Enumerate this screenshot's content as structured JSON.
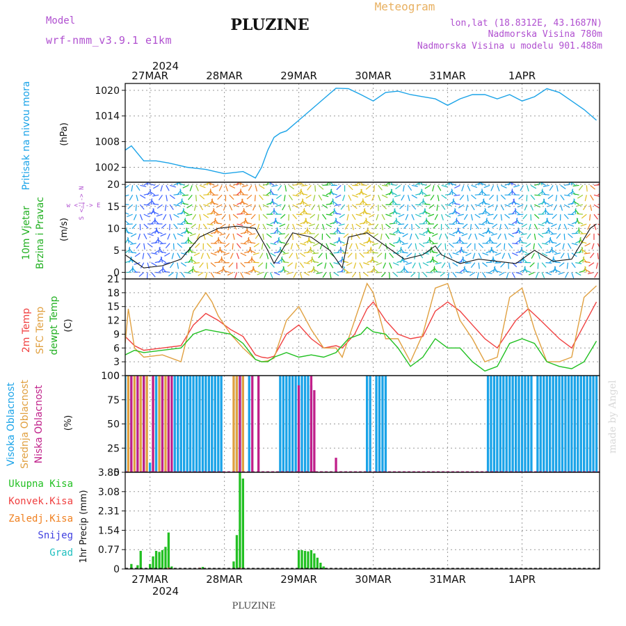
{
  "header": {
    "station": "PLUZINE",
    "product": "Meteogram",
    "model_label": "Model",
    "model_name": "wrf-nmm_v3.9.1 e1km",
    "lonlat": "lon,lat (18.8312E, 43.1687N)",
    "elevation": "Nadmorska Visina 780m",
    "model_elevation": "Nadmorska Visina u modelu 901.488m",
    "footer_station": "PLUZINE",
    "credit": "made by Angel"
  },
  "colors": {
    "pressure": "#1aa3e8",
    "temp2m": "#f04040",
    "sfc": "#e0a040",
    "dewpt": "#20c020",
    "cloud_high": "#1aa3e8",
    "cloud_mid": "#e0a040",
    "cloud_low": "#c0208a",
    "precip_total": "#22c022",
    "precip_conv": "#f04040",
    "precip_frozen": "#f08020",
    "snow": "#4040e0",
    "grad": "#20c0c0",
    "title_purple": "#b050d0",
    "title_orange": "#e8b060"
  },
  "chart_data": {
    "type": "meteogram",
    "year": "2024",
    "day_labels": [
      "27MAR",
      "28MAR",
      "29MAR",
      "30MAR",
      "31MAR",
      "1APR"
    ],
    "hours": 153,
    "panels": [
      {
        "id": "pressure",
        "type": "line",
        "ylabel": "Pritisak na nivou mora",
        "unit": "(hPa)",
        "yticks": [
          1002,
          1008,
          1014,
          1020
        ],
        "ylim": [
          998.5,
          1021.6
        ],
        "series": [
          {
            "x": [
              0,
              2,
              6,
              10,
              14,
              20,
              26,
              32,
              38,
              42,
              44,
              46,
              48,
              50,
              52,
              56,
              60,
              64,
              68,
              72,
              76,
              80,
              84,
              88,
              92,
              96,
              100,
              104,
              108,
              112,
              116,
              120,
              124,
              128,
              132,
              136,
              140,
              144,
              148,
              152
            ],
            "y": [
              1006,
              1007,
              1003.5,
              1003.5,
              1003,
              1002,
              1001.5,
              1000.5,
              1001,
              999.5,
              1002,
              1006,
              1009,
              1010,
              1010.5,
              1013,
              1015.5,
              1018,
              1020.5,
              1020.4,
              1019,
              1017.5,
              1019.5,
              1019.8,
              1019,
              1018.5,
              1018,
              1016.5,
              1018,
              1019,
              1019,
              1018,
              1019,
              1017.5,
              1018.5,
              1020.4,
              1019.5,
              1017.5,
              1015.5,
              1013
            ]
          }
        ]
      },
      {
        "id": "wind",
        "type": "wind-barbs",
        "ylabel": "10m Vjetar Brzina i Pravac",
        "unit": "(m/s)",
        "compass": [
          "w",
          "<-",
          "|",
          "->",
          "E",
          "N",
          "S"
        ],
        "yticks": [
          0,
          5,
          10,
          15,
          20
        ],
        "ylim": [
          -1.5,
          20.5
        ],
        "speed": {
          "x": [
            0,
            6,
            12,
            18,
            24,
            30,
            36,
            42,
            46,
            48,
            54,
            60,
            66,
            70,
            72,
            78,
            84,
            90,
            96,
            100,
            102,
            108,
            114,
            120,
            126,
            132,
            138,
            144,
            150,
            152
          ],
          "y": [
            4,
            1,
            1.5,
            3,
            8,
            10,
            10.5,
            10,
            5,
            2,
            9,
            8,
            5,
            1,
            8,
            9,
            6,
            3,
            4,
            6,
            4,
            2,
            3,
            2.5,
            2,
            5,
            2.5,
            3,
            10,
            11
          ]
        }
      },
      {
        "id": "temperature",
        "type": "line",
        "ylabel": [
          "2m Temp",
          "SFC Temp",
          "dewpt Temp"
        ],
        "unit": "(C)",
        "yticks": [
          0,
          3,
          6,
          9,
          12,
          15,
          18,
          21
        ],
        "ylim": [
          0,
          21
        ],
        "series": [
          {
            "name": "2m Temp",
            "key": "temp2m",
            "x": [
              0,
              3,
              6,
              12,
              18,
              22,
              26,
              30,
              34,
              38,
              42,
              44,
              46,
              48,
              52,
              56,
              60,
              64,
              68,
              70,
              74,
              78,
              80,
              84,
              88,
              92,
              96,
              100,
              104,
              108,
              112,
              116,
              120,
              126,
              130,
              134,
              140,
              144,
              148,
              152
            ],
            "y": [
              8.5,
              6.5,
              5.5,
              6,
              6.5,
              11,
              13.5,
              12,
              10,
              8.5,
              4.5,
              4,
              3.8,
              4.2,
              9,
              11,
              8,
              6,
              6.5,
              6,
              9,
              14.5,
              16,
              12,
              9,
              8,
              8.5,
              14,
              16,
              14,
              11,
              8,
              6,
              12,
              14.5,
              12,
              8,
              6,
              11,
              16
            ]
          },
          {
            "name": "SFC Temp",
            "key": "sfc",
            "x": [
              0,
              1,
              3,
              6,
              12,
              18,
              22,
              26,
              28,
              30,
              34,
              38,
              42,
              44,
              46,
              48,
              52,
              56,
              60,
              64,
              68,
              70,
              74,
              78,
              80,
              84,
              88,
              92,
              96,
              100,
              104,
              108,
              112,
              116,
              120,
              124,
              128,
              132,
              136,
              140,
              144,
              148,
              152
            ],
            "y": [
              7,
              14.5,
              6,
              4,
              4.5,
              3,
              14,
              18,
              16,
              13,
              9,
              6,
              3.5,
              3,
              3.2,
              3.8,
              12,
              15,
              10,
              6,
              6,
              4,
              12,
              20,
              18,
              8,
              8,
              3,
              9,
              19,
              20,
              12,
              8,
              3,
              4,
              17,
              19,
              10,
              3,
              3,
              4,
              17,
              19.5
            ]
          },
          {
            "name": "dewpt Temp",
            "key": "dewpt",
            "x": [
              0,
              3,
              6,
              12,
              18,
              22,
              26,
              30,
              34,
              38,
              42,
              44,
              46,
              48,
              52,
              56,
              60,
              64,
              68,
              72,
              76,
              78,
              80,
              84,
              88,
              92,
              96,
              100,
              104,
              108,
              112,
              116,
              120,
              124,
              128,
              132,
              136,
              140,
              144,
              148,
              152
            ],
            "y": [
              4.5,
              5.5,
              5,
              5.5,
              6,
              9,
              10,
              9.5,
              9,
              7,
              3.5,
              3,
              3,
              4,
              5,
              4,
              4.5,
              4,
              5,
              8,
              9,
              10.5,
              9.5,
              9,
              6,
              2,
              4,
              8,
              6,
              6,
              3,
              1,
              2,
              7,
              8,
              7,
              3,
              2,
              1.5,
              3,
              7.5
            ]
          }
        ]
      },
      {
        "id": "clouds",
        "type": "bar",
        "ylabel": [
          "Visoka Oblacnost",
          "Srednja Oblacnost",
          "Niska Oblacnost"
        ],
        "unit": "(%)",
        "yticks": [
          0,
          25,
          50,
          75,
          100
        ],
        "ylim": [
          0,
          100
        ],
        "series": [
          {
            "name": "Visoka Oblacnost",
            "key": "cloud_high",
            "x": [
              0,
              2,
              4,
              6,
              8,
              10,
              12,
              16,
              17,
              18,
              19,
              20,
              21,
              22,
              23,
              24,
              25,
              26,
              27,
              28,
              29,
              30,
              31,
              36,
              37,
              38,
              40,
              50,
              51,
              52,
              53,
              54,
              55,
              56,
              57,
              58,
              59,
              60,
              78,
              79,
              81,
              82,
              83,
              84,
              117,
              118,
              119,
              120,
              121,
              122,
              123,
              124,
              125,
              126,
              127,
              128,
              129,
              130,
              131,
              133,
              134,
              135,
              136,
              137,
              138,
              139,
              140,
              141,
              142,
              143,
              144,
              145,
              146,
              147,
              148,
              149,
              150,
              151,
              152
            ],
            "y": [
              100,
              100,
              100,
              100,
              10,
              100,
              100,
              100,
              100,
              100,
              100,
              100,
              100,
              100,
              100,
              100,
              100,
              100,
              100,
              100,
              100,
              100,
              100,
              100,
              100,
              100,
              100,
              100,
              100,
              100,
              100,
              100,
              100,
              100,
              100,
              100,
              100,
              90,
              100,
              100,
              100,
              100,
              100,
              100,
              100,
              100,
              100,
              100,
              100,
              100,
              100,
              100,
              100,
              100,
              100,
              100,
              100,
              100,
              100,
              100,
              100,
              100,
              100,
              100,
              100,
              100,
              100,
              100,
              100,
              100,
              100,
              100,
              100,
              100,
              100,
              100,
              100,
              100,
              100
            ]
          },
          {
            "name": "Srednja Oblacnost",
            "key": "cloud_mid",
            "x": [
              1,
              3,
              5,
              7,
              9,
              11,
              13,
              14,
              35,
              36,
              38
            ],
            "y": [
              100,
              100,
              100,
              100,
              100,
              100,
              100,
              100,
              100,
              100,
              100
            ]
          },
          {
            "name": "Niska Oblacnost",
            "key": "cloud_low",
            "x": [
              2,
              4,
              6,
              9,
              12,
              14,
              15,
              37,
              41,
              43,
              56,
              60,
              61,
              68
            ],
            "y": [
              100,
              100,
              100,
              100,
              100,
              100,
              100,
              100,
              100,
              100,
              90,
              100,
              85,
              15
            ]
          }
        ]
      },
      {
        "id": "precip",
        "type": "bar",
        "ylabel": "1hr Precip (mm)",
        "legend": [
          "Ukupna Kisa",
          "Konvek.Kisa",
          "Zaledj.Kisa",
          "Snijeg",
          "Grad"
        ],
        "yticks": [
          0,
          0.77,
          1.54,
          2.31,
          3.08,
          3.85
        ],
        "ylim": [
          0,
          3.85
        ],
        "series": [
          {
            "name": "Ukupna Kisa",
            "key": "precip_total",
            "x": [
              2,
              4,
              5,
              8,
              9,
              10,
              11,
              12,
              13,
              14,
              15,
              25,
              35,
              36,
              37,
              38,
              56,
              57,
              58,
              59,
              60,
              61,
              62,
              63,
              64
            ],
            "y": [
              0.2,
              0.15,
              0.72,
              0.2,
              0.5,
              0.72,
              0.68,
              0.75,
              0.88,
              1.45,
              0.1,
              0.08,
              0.3,
              1.35,
              3.85,
              3.6,
              0.75,
              0.75,
              0.72,
              0.7,
              0.75,
              0.62,
              0.45,
              0.25,
              0.1
            ]
          },
          {
            "name": "Konvek.Kisa",
            "key": "precip_conv",
            "x": [
              14,
              24,
              37
            ],
            "y": [
              0.05,
              0.05,
              0.05
            ]
          }
        ]
      }
    ]
  }
}
